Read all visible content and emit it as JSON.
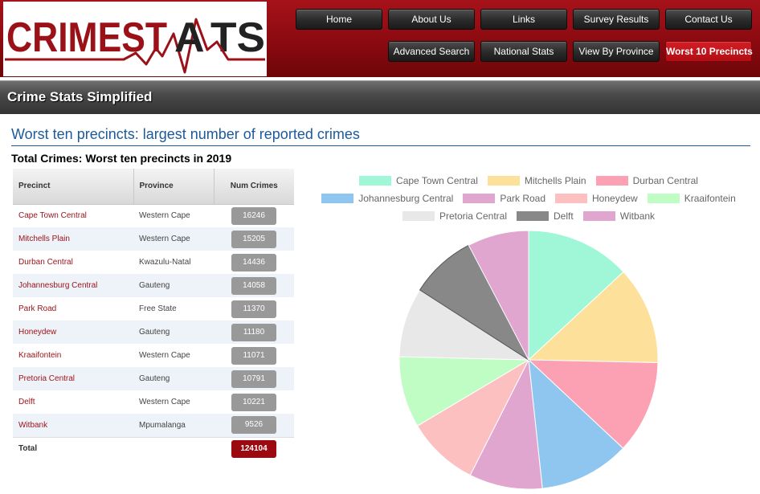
{
  "logo": {
    "text_left": "CRIMEST",
    "text_right": "TS"
  },
  "nav": {
    "row1": [
      "Home",
      "About Us",
      "Links",
      "Survey Results",
      "Contact Us"
    ],
    "row2": [
      "Advanced Search",
      "National Stats",
      "View By Province",
      "Worst 10 Precincts"
    ],
    "active": "Worst 10 Precincts"
  },
  "subheader": {
    "title": "Crime Stats Simplified"
  },
  "page": {
    "heading": "Worst ten precincts: largest number of reported crimes",
    "section_title": "Total Crimes: Worst ten precincts in 2019"
  },
  "table": {
    "headers": [
      "Precinct",
      "Province",
      "Num Crimes"
    ],
    "rows": [
      {
        "precinct": "Cape Town Central",
        "province": "Western Cape",
        "crimes": "16246"
      },
      {
        "precinct": "Mitchells Plain",
        "province": "Western Cape",
        "crimes": "15205"
      },
      {
        "precinct": "Durban Central",
        "province": "Kwazulu-Natal",
        "crimes": "14436"
      },
      {
        "precinct": "Johannesburg Central",
        "province": "Gauteng",
        "crimes": "14058"
      },
      {
        "precinct": "Park Road",
        "province": "Free State",
        "crimes": "11370"
      },
      {
        "precinct": "Honeydew",
        "province": "Gauteng",
        "crimes": "11180"
      },
      {
        "precinct": "Kraaifontein",
        "province": "Western Cape",
        "crimes": "11071"
      },
      {
        "precinct": "Pretoria Central",
        "province": "Gauteng",
        "crimes": "10791"
      },
      {
        "precinct": "Delft",
        "province": "Western Cape",
        "crimes": "10221"
      },
      {
        "precinct": "Witbank",
        "province": "Mpumalanga",
        "crimes": "9526"
      }
    ],
    "total_label": "Total",
    "total_value": "124104"
  },
  "chart_data": {
    "type": "pie",
    "categories": [
      "Cape Town Central",
      "Mitchells Plain",
      "Durban Central",
      "Johannesburg Central",
      "Park Road",
      "Honeydew",
      "Kraaifontein",
      "Pretoria Central",
      "Delft",
      "Witbank"
    ],
    "values": [
      16246,
      15205,
      14436,
      14058,
      11370,
      11180,
      11071,
      10791,
      10221,
      9526
    ],
    "colors": [
      "#9ff7d8",
      "#fde19b",
      "#fca0b3",
      "#8ec6f0",
      "#e0a6d0",
      "#fdc0c0",
      "#c0fdc4",
      "#e8e8e8",
      "#888888",
      "#e0a6d0"
    ],
    "legend_position": "top"
  }
}
